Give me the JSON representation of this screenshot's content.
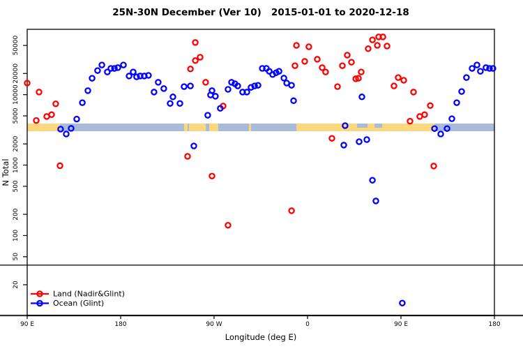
{
  "title": "25N-30N December (Ver 10)   2015-01-01 to 2020-12-18",
  "chart_data": {
    "type": "scatter",
    "title": "25N-30N December (Ver 10)   2015-01-01 to 2020-12-18",
    "xlabel": "Longitude (deg E)",
    "ylabel": "N Total",
    "x_axis": {
      "range_deg": [
        90,
        540
      ],
      "ticks": [
        {
          "lon": 90,
          "label": "90 E"
        },
        {
          "lon": 180,
          "label": "180"
        },
        {
          "lon": 270,
          "label": "90 W"
        },
        {
          "lon": 360,
          "label": "0"
        },
        {
          "lon": 450,
          "label": "90 E"
        },
        {
          "lon": 540,
          "label": "180"
        }
      ]
    },
    "y_axis": {
      "scale": "log10",
      "ticks": [
        "20",
        "50",
        "100",
        "200",
        "500",
        "1000",
        "2000",
        "5000",
        "10000",
        "20000",
        "50000"
      ]
    },
    "reference_line_n": 38,
    "grid": "off",
    "legend": {
      "position": "bottom-left",
      "items": [
        {
          "label": "Land (Nadir&Glint)",
          "color": "#ff0000"
        },
        {
          "label": "Ocean (Glint)",
          "color": "#0000ff"
        }
      ]
    },
    "map_strip": {
      "description": "land/ocean world band at 25N-30N",
      "n_center": 3500,
      "ocean_color": "#a8bcd9",
      "land_color": "#fbd77e",
      "land_segments_deg": [
        [
          90,
          121.6
        ],
        [
          241.1,
          244.5
        ],
        [
          245.8,
          262.0
        ],
        [
          265.3,
          274.0
        ],
        [
          303.6,
          305.6
        ],
        [
          349.3,
          482.3
        ]
      ],
      "ocean_inlets_deg": [
        [
          407.7,
          417.8
        ],
        [
          424.5,
          431.9
        ]
      ]
    },
    "series": [
      {
        "name": "Land (Nadir&Glint)",
        "color": "#ff0000",
        "points": [
          [
            90.0,
            14600
          ],
          [
            101.4,
            10900
          ],
          [
            117.5,
            7400
          ],
          [
            113.5,
            5200
          ],
          [
            108.8,
            4900
          ],
          [
            98.7,
            4300
          ],
          [
            121.6,
            980
          ],
          [
            244.5,
            1330
          ],
          [
            251.9,
            55000
          ],
          [
            256.6,
            34000
          ],
          [
            251.9,
            30500
          ],
          [
            247.2,
            23200
          ],
          [
            261.9,
            15000
          ],
          [
            278.7,
            6900
          ],
          [
            268.0,
            700
          ],
          [
            283.4,
            140
          ],
          [
            344.6,
            225
          ],
          [
            347.9,
            25800
          ],
          [
            349.3,
            50100
          ],
          [
            357.3,
            29700
          ],
          [
            361.3,
            47900
          ],
          [
            369.4,
            31800
          ],
          [
            374.1,
            24200
          ],
          [
            377.4,
            21000
          ],
          [
            383.5,
            2400
          ],
          [
            388.9,
            13000
          ],
          [
            393.6,
            25800
          ],
          [
            398.3,
            36400
          ],
          [
            402.3,
            28900
          ],
          [
            406.4,
            16800
          ],
          [
            409.0,
            17100
          ],
          [
            411.7,
            21000
          ],
          [
            418.4,
            44900
          ],
          [
            422.5,
            60000
          ],
          [
            427.2,
            50100
          ],
          [
            428.5,
            66000
          ],
          [
            432.6,
            66000
          ],
          [
            436.6,
            49000
          ],
          [
            443.3,
            13300
          ],
          [
            447.3,
            17500
          ],
          [
            452.7,
            16000
          ],
          [
            462.1,
            10900
          ],
          [
            458.7,
            4200
          ],
          [
            468.1,
            4900
          ],
          [
            472.8,
            5200
          ],
          [
            478.2,
            7000
          ],
          [
            481.6,
            970
          ]
        ]
      },
      {
        "name": "Ocean (Glint)",
        "color": "#0000ff",
        "points": [
          [
            122.2,
            3240
          ],
          [
            127.6,
            2760
          ],
          [
            132.3,
            3320
          ],
          [
            137.7,
            4500
          ],
          [
            143.1,
            7700
          ],
          [
            148.4,
            11400
          ],
          [
            152.5,
            17100
          ],
          [
            157.8,
            22000
          ],
          [
            161.9,
            26400
          ],
          [
            167.2,
            21000
          ],
          [
            170.6,
            23600
          ],
          [
            174.0,
            23600
          ],
          [
            177.3,
            24200
          ],
          [
            182.7,
            26400
          ],
          [
            188.1,
            18400
          ],
          [
            192.1,
            21000
          ],
          [
            195.4,
            17900
          ],
          [
            198.8,
            18400
          ],
          [
            202.8,
            18400
          ],
          [
            206.8,
            18800
          ],
          [
            212.2,
            10900
          ],
          [
            216.2,
            15000
          ],
          [
            221.6,
            12200
          ],
          [
            227.7,
            7500
          ],
          [
            230.4,
            9300
          ],
          [
            237.1,
            7500
          ],
          [
            241.1,
            13000
          ],
          [
            247.2,
            13300
          ],
          [
            250.5,
            1870
          ],
          [
            263.9,
            5100
          ],
          [
            266.6,
            9900
          ],
          [
            268.0,
            11400
          ],
          [
            271.3,
            9500
          ],
          [
            276.0,
            6400
          ],
          [
            283.4,
            11900
          ],
          [
            286.8,
            15000
          ],
          [
            290.1,
            14300
          ],
          [
            292.8,
            13300
          ],
          [
            297.5,
            10900
          ],
          [
            301.6,
            10900
          ],
          [
            305.6,
            12700
          ],
          [
            309.0,
            13300
          ],
          [
            312.3,
            13600
          ],
          [
            316.4,
            23600
          ],
          [
            320.4,
            23600
          ],
          [
            323.1,
            21500
          ],
          [
            326.4,
            19300
          ],
          [
            329.8,
            20500
          ],
          [
            332.5,
            21500
          ],
          [
            337.2,
            17200
          ],
          [
            339.9,
            14600
          ],
          [
            344.6,
            13600
          ],
          [
            346.6,
            8200
          ],
          [
            394.9,
            1920
          ],
          [
            396.2,
            3630
          ],
          [
            409.7,
            2150
          ],
          [
            412.4,
            9300
          ],
          [
            417.1,
            2300
          ],
          [
            422.5,
            610
          ],
          [
            425.8,
            310
          ],
          [
            451.3,
            11
          ],
          [
            482.3,
            3300
          ],
          [
            488.3,
            2760
          ],
          [
            494.4,
            3300
          ],
          [
            499.0,
            4550
          ],
          [
            503.7,
            7700
          ],
          [
            508.4,
            11100
          ],
          [
            513.1,
            17500
          ],
          [
            518.5,
            23600
          ],
          [
            523.2,
            26400
          ],
          [
            526.5,
            21500
          ],
          [
            531.9,
            24200
          ],
          [
            535.3,
            23600
          ],
          [
            538.6,
            23600
          ]
        ]
      }
    ]
  }
}
